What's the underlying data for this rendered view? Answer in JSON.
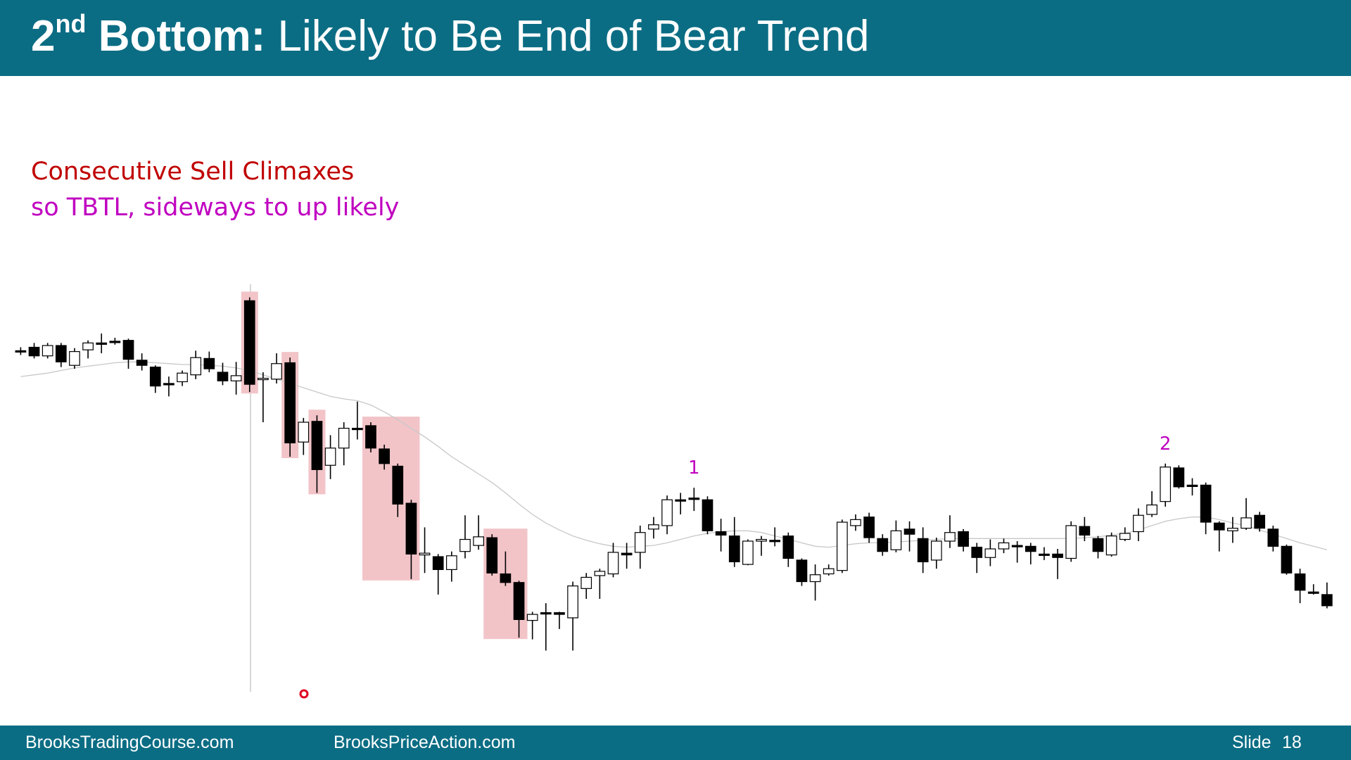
{
  "header": {
    "number": "2",
    "superscript": "nd",
    "bold": "Bottom:",
    "rest": "Likely to Be End of Bear Trend"
  },
  "notes": [
    "Consecutive Sell Climaxes",
    "so TBTL, sideways to up likely"
  ],
  "chart_data": {
    "type": "candlestick",
    "ylim": [
      200,
      700
    ],
    "ohlc": [
      [
        593,
        597,
        588,
        593
      ],
      [
        597,
        602,
        584,
        587
      ],
      [
        587,
        602,
        584,
        599
      ],
      [
        599,
        602,
        574,
        580
      ],
      [
        576,
        596,
        572,
        592
      ],
      [
        594,
        605,
        584,
        602
      ],
      [
        602,
        613,
        590,
        601
      ],
      [
        604,
        608,
        600,
        604
      ],
      [
        605,
        607,
        572,
        583
      ],
      [
        582,
        590,
        570,
        576
      ],
      [
        574,
        576,
        544,
        552
      ],
      [
        555,
        563,
        540,
        554
      ],
      [
        557,
        570,
        552,
        567
      ],
      [
        565,
        593,
        560,
        585
      ],
      [
        584,
        592,
        568,
        572
      ],
      [
        568,
        579,
        553,
        558
      ],
      [
        558,
        580,
        542,
        564
      ],
      [
        651,
        655,
        545,
        554
      ],
      [
        560,
        568,
        510,
        561
      ],
      [
        560,
        590,
        555,
        578
      ],
      [
        579,
        585,
        470,
        486
      ],
      [
        487,
        515,
        472,
        510
      ],
      [
        511,
        518,
        428,
        455
      ],
      [
        460,
        495,
        444,
        480
      ],
      [
        480,
        510,
        460,
        503
      ],
      [
        503,
        534,
        490,
        503
      ],
      [
        506,
        510,
        475,
        480
      ],
      [
        479,
        484,
        455,
        462
      ],
      [
        459,
        462,
        400,
        415
      ],
      [
        416,
        420,
        328,
        357
      ],
      [
        356,
        388,
        335,
        358
      ],
      [
        354,
        357,
        310,
        339
      ],
      [
        339,
        360,
        325,
        355
      ],
      [
        360,
        402,
        352,
        374
      ],
      [
        367,
        402,
        362,
        377
      ],
      [
        376,
        380,
        332,
        335
      ],
      [
        334,
        360,
        320,
        324
      ],
      [
        324,
        326,
        260,
        281
      ],
      [
        280,
        290,
        258,
        287
      ],
      [
        289,
        300,
        245,
        289
      ],
      [
        289,
        290,
        270,
        287
      ],
      [
        283,
        325,
        245,
        320
      ],
      [
        317,
        335,
        305,
        330
      ],
      [
        332,
        340,
        305,
        337
      ],
      [
        334,
        370,
        330,
        359
      ],
      [
        358,
        370,
        340,
        356
      ],
      [
        359,
        390,
        340,
        382
      ],
      [
        386,
        400,
        375,
        391
      ],
      [
        390,
        425,
        380,
        420
      ],
      [
        420,
        428,
        403,
        420
      ],
      [
        422,
        434,
        407,
        422
      ],
      [
        420,
        424,
        380,
        384
      ],
      [
        383,
        398,
        360,
        379
      ],
      [
        378,
        400,
        342,
        348
      ],
      [
        345,
        374,
        344,
        372
      ],
      [
        372,
        378,
        355,
        374
      ],
      [
        373,
        388,
        366,
        373
      ],
      [
        378,
        382,
        342,
        352
      ],
      [
        350,
        352,
        320,
        325
      ],
      [
        325,
        345,
        303,
        333
      ],
      [
        334,
        345,
        332,
        340
      ],
      [
        338,
        397,
        335,
        394
      ],
      [
        390,
        403,
        384,
        397
      ],
      [
        400,
        405,
        370,
        376
      ],
      [
        375,
        380,
        355,
        360
      ],
      [
        362,
        396,
        359,
        384
      ],
      [
        386,
        395,
        360,
        380
      ],
      [
        375,
        388,
        335,
        348
      ],
      [
        350,
        376,
        340,
        372
      ],
      [
        372,
        402,
        364,
        382
      ],
      [
        383,
        386,
        360,
        366
      ],
      [
        365,
        370,
        335,
        353
      ],
      [
        353,
        374,
        343,
        363
      ],
      [
        363,
        375,
        358,
        370
      ],
      [
        367,
        372,
        347,
        367
      ],
      [
        366,
        370,
        345,
        360
      ],
      [
        357,
        365,
        350,
        357
      ],
      [
        357,
        363,
        328,
        353
      ],
      [
        352,
        395,
        348,
        390
      ],
      [
        389,
        400,
        372,
        379
      ],
      [
        375,
        378,
        352,
        360
      ],
      [
        356,
        382,
        354,
        378
      ],
      [
        374,
        388,
        372,
        381
      ],
      [
        383,
        410,
        372,
        402
      ],
      [
        403,
        430,
        400,
        414
      ],
      [
        418,
        462,
        412,
        458
      ],
      [
        457,
        460,
        433,
        435
      ],
      [
        437,
        445,
        425,
        437
      ],
      [
        437,
        440,
        380,
        394
      ],
      [
        393,
        395,
        360,
        385
      ],
      [
        384,
        400,
        370,
        387
      ],
      [
        387,
        422,
        385,
        399
      ],
      [
        402,
        406,
        383,
        387
      ],
      [
        386,
        390,
        360,
        366
      ],
      [
        366,
        368,
        333,
        335
      ],
      [
        334,
        340,
        300,
        315
      ],
      [
        313,
        322,
        310,
        313
      ],
      [
        310,
        324,
        294,
        297
      ]
    ],
    "ma": [
      563,
      565,
      567,
      570,
      573,
      575,
      577,
      579,
      580,
      580,
      579,
      578,
      577,
      577,
      576,
      575,
      573,
      570,
      565,
      560,
      555,
      550,
      545,
      540,
      537,
      535,
      530,
      522,
      513,
      503,
      493,
      482,
      470,
      460,
      450,
      440,
      428,
      415,
      403,
      393,
      385,
      378,
      373,
      369,
      366,
      365,
      366,
      367,
      370,
      374,
      378,
      381,
      383,
      384,
      384,
      382,
      378,
      374,
      370,
      366,
      365,
      367,
      369,
      370,
      370,
      371,
      372,
      373,
      374,
      375,
      375,
      375,
      375,
      375,
      375,
      375,
      375,
      375,
      375,
      376,
      377,
      379,
      381,
      385,
      390,
      395,
      398,
      400,
      400,
      397,
      393,
      390,
      385,
      380,
      375,
      370,
      366,
      362
    ],
    "highlights": [
      {
        "from": 17,
        "to": 17
      },
      {
        "from": 20,
        "to": 20
      },
      {
        "from": 22,
        "to": 22
      },
      {
        "from": 26,
        "to": 29
      },
      {
        "from": 35,
        "to": 37
      }
    ],
    "annotations": [
      {
        "text": "1",
        "at": 50
      },
      {
        "text": "2",
        "at": 85
      }
    ],
    "bull_color": "#ffffff",
    "bear_color": "#000000",
    "ma_color": "#c8c8c8",
    "highlight_color": "#f2c4c8",
    "annotation_color": "#c000c0"
  },
  "footer": {
    "left": "BrooksTradingCourse.com",
    "middle": "BrooksPriceAction.com",
    "slide_label": "Slide",
    "slide_number": "18"
  }
}
